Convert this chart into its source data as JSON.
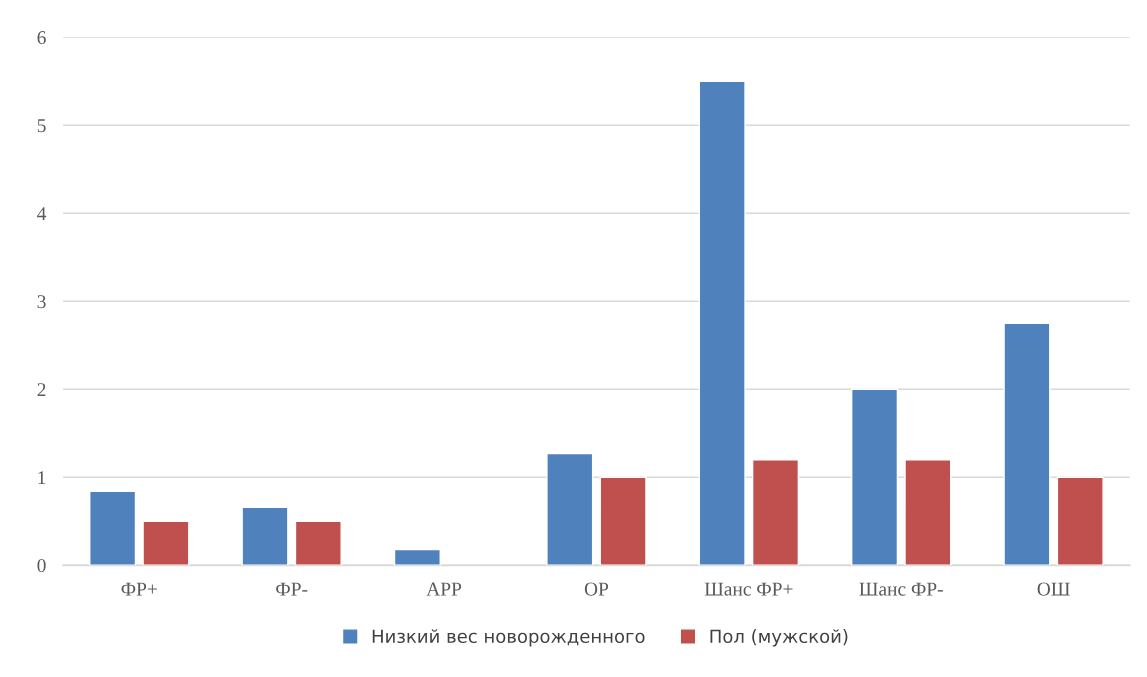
{
  "chart_data": {
    "type": "bar",
    "categories": [
      "ФР+",
      "ФР-",
      "АРР",
      "ОР",
      "Шанс ФР+",
      "Шанс ФР-",
      "ОШ"
    ],
    "series": [
      {
        "name": "Низкий вес новорожденного",
        "color": "#4f81bd",
        "values": [
          0.84,
          0.66,
          0.18,
          1.27,
          5.5,
          2.0,
          2.75
        ]
      },
      {
        "name": "Пол (мужской)",
        "color": "#c0504d",
        "values": [
          0.5,
          0.5,
          null,
          1.0,
          1.2,
          1.2,
          1.0
        ]
      }
    ],
    "ylim": [
      0,
      6
    ],
    "yticks": [
      0,
      1,
      2,
      3,
      4,
      5,
      6
    ],
    "grid": "y",
    "legend": "bottom"
  }
}
